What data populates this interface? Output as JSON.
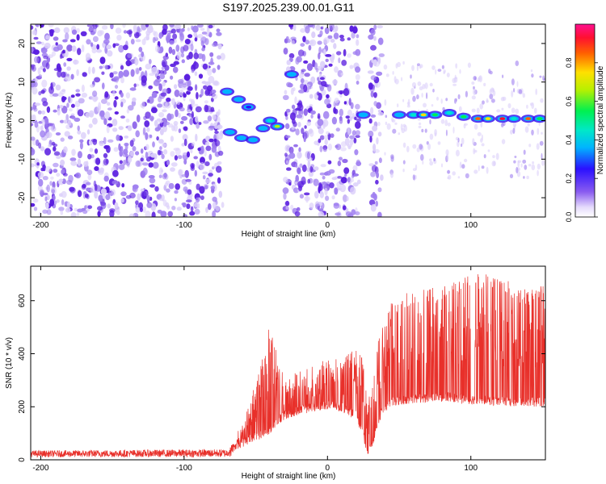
{
  "title": "S197.2025.239.00.01.G11",
  "colors": {
    "snr_line": "#e8302a",
    "scatter_low": "#a080f0",
    "scatter_mid": "#5a1ee0",
    "scatter_pale": "#dcd0fa"
  },
  "chart_data": [
    {
      "type": "heatmap",
      "name": "spectrogram",
      "xlabel": "Height of straight line (km)",
      "ylabel": "Frequency (Hz)",
      "xlim": [
        -207,
        152
      ],
      "ylim": [
        -25,
        25
      ],
      "xticks": [
        -200,
        -100,
        0,
        100
      ],
      "yticks": [
        -20,
        -10,
        0,
        10,
        20
      ],
      "xtick_labels": [
        "-200",
        "-100",
        "0",
        "100"
      ],
      "ytick_labels": [
        "-20",
        "-10",
        "0",
        "10",
        "20"
      ],
      "colorbar": {
        "label": "Normalized spectral amplitude",
        "range": [
          0,
          1
        ],
        "ticks": [
          0.0,
          0.2,
          0.4,
          0.6,
          0.8
        ],
        "tick_labels": [
          "0.0",
          "0.2",
          "0.4",
          "0.6",
          "0.8"
        ]
      },
      "noise_regions_km": [
        [
          -207,
          -73
        ],
        [
          -30,
          -22
        ],
        [
          -22,
          22
        ],
        [
          30,
          38
        ]
      ],
      "signal_track": [
        {
          "x": -70,
          "freq": 7.5,
          "amp": 0.35
        },
        {
          "x": -62,
          "freq": 5.5,
          "amp": 0.3
        },
        {
          "x": -55,
          "freq": 3.5,
          "amp": 0.25
        },
        {
          "x": -68,
          "freq": -3,
          "amp": 0.3
        },
        {
          "x": -60,
          "freq": -4.5,
          "amp": 0.35
        },
        {
          "x": -52,
          "freq": -5,
          "amp": 0.3
        },
        {
          "x": -45,
          "freq": -2,
          "amp": 0.35
        },
        {
          "x": -40,
          "freq": 0,
          "amp": 0.4
        },
        {
          "x": -35,
          "freq": -1.5,
          "amp": 0.65
        },
        {
          "x": -25,
          "freq": 12,
          "amp": 0.3
        },
        {
          "x": 25,
          "freq": 1.5,
          "amp": 0.3
        },
        {
          "x": 50,
          "freq": 1.5,
          "amp": 0.35
        },
        {
          "x": 60,
          "freq": 1.5,
          "amp": 0.45
        },
        {
          "x": 67,
          "freq": 1.5,
          "amp": 0.7
        },
        {
          "x": 75,
          "freq": 1.5,
          "amp": 0.5
        },
        {
          "x": 85,
          "freq": 2,
          "amp": 0.45
        },
        {
          "x": 95,
          "freq": 1,
          "amp": 0.55
        },
        {
          "x": 105,
          "freq": 0.5,
          "amp": 0.8
        },
        {
          "x": 112,
          "freq": 0.5,
          "amp": 0.7
        },
        {
          "x": 122,
          "freq": 0.5,
          "amp": 0.9
        },
        {
          "x": 130,
          "freq": 0.5,
          "amp": 0.4
        },
        {
          "x": 140,
          "freq": 0.5,
          "amp": 0.85
        },
        {
          "x": 148,
          "freq": 0.5,
          "amp": 0.5
        }
      ]
    },
    {
      "type": "line",
      "name": "snr",
      "xlabel": "Height of straight line (km)",
      "ylabel": "SNR (10 * v/v)",
      "xlim": [
        -207,
        152
      ],
      "ylim": [
        0,
        730
      ],
      "xticks": [
        -200,
        -100,
        0,
        100
      ],
      "yticks": [
        0,
        200,
        400,
        600
      ],
      "xtick_labels": [
        "-200",
        "-100",
        "0",
        "100"
      ],
      "ytick_labels": [
        "0",
        "200",
        "400",
        "600"
      ],
      "envelope": {
        "x": [
          -207,
          -70,
          -65,
          -55,
          -45,
          -40,
          -35,
          -30,
          -20,
          -10,
          0,
          10,
          20,
          25,
          28,
          32,
          38,
          45,
          55,
          65,
          75,
          85,
          95,
          105,
          115,
          125,
          135,
          145,
          152
        ],
        "low": [
          10,
          10,
          30,
          60,
          80,
          100,
          130,
          150,
          170,
          180,
          190,
          180,
          150,
          80,
          10,
          60,
          170,
          200,
          210,
          215,
          220,
          220,
          210,
          210,
          205,
          200,
          200,
          200,
          200
        ],
        "high": [
          35,
          40,
          80,
          200,
          400,
          520,
          400,
          300,
          340,
          360,
          400,
          380,
          420,
          380,
          200,
          350,
          520,
          600,
          630,
          650,
          650,
          660,
          690,
          700,
          700,
          680,
          650,
          640,
          680
        ]
      }
    }
  ]
}
